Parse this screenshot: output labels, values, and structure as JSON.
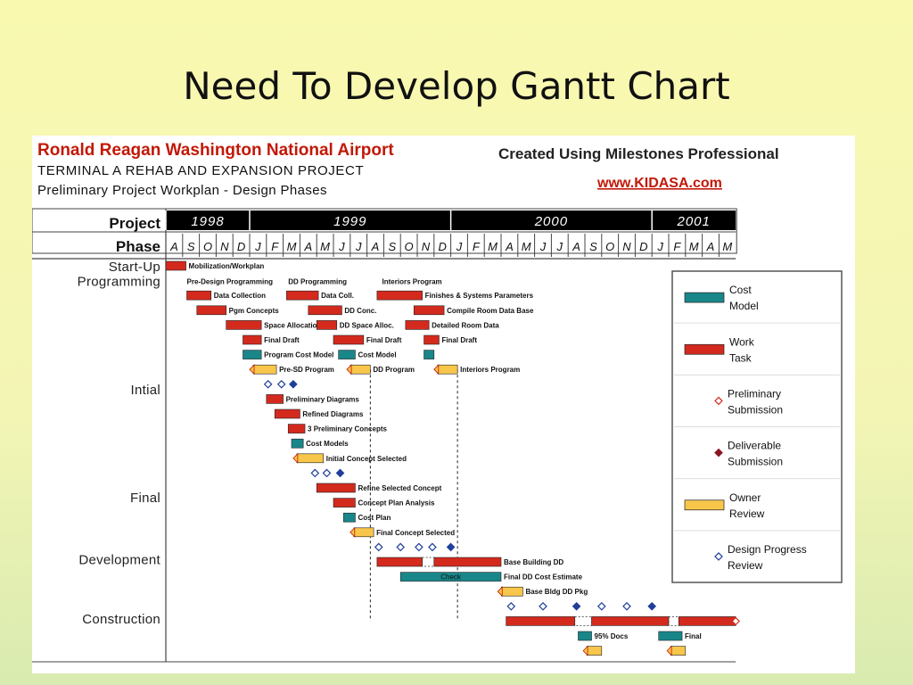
{
  "slide": {
    "title": "Need To Develop Gantt Chart"
  },
  "header": {
    "airport": "Ronald Reagan Washington National Airport",
    "project": "TERMINAL A REHAB AND EXPANSION PROJECT",
    "subtitle": "Preliminary Project Workplan - Design Phases",
    "created": "Created Using Milestones Professional",
    "url": "www.KIDASA.com"
  },
  "colors": {
    "work": "#d42a1e",
    "cost": "#19878a",
    "review": "#f7c64a",
    "prelim": "#d42a1e",
    "deliverable": "#8a1424",
    "progress": "#1f3f9a",
    "brand_red": "#c21807",
    "link_red": "#c21807"
  },
  "chart_data": {
    "type": "gantt",
    "axis_labels": {
      "project": "Project",
      "phase": "Phase"
    },
    "years": [
      {
        "label": "1998",
        "start": 0,
        "end": 5
      },
      {
        "label": "1999",
        "start": 5,
        "end": 17
      },
      {
        "label": "2000",
        "start": 17,
        "end": 29
      },
      {
        "label": "2001",
        "start": 29,
        "end": 34
      }
    ],
    "months": [
      "A",
      "S",
      "O",
      "N",
      "D",
      "J",
      "F",
      "M",
      "A",
      "M",
      "J",
      "J",
      "A",
      "S",
      "O",
      "N",
      "D",
      "J",
      "F",
      "M",
      "A",
      "M",
      "J",
      "J",
      "A",
      "S",
      "O",
      "N",
      "D",
      "J",
      "F",
      "M",
      "A",
      "M"
    ],
    "phases": [
      "Start-Up",
      "Programming",
      "Intial",
      "Final",
      "Development",
      "Construction"
    ],
    "tasks": [
      {
        "row": 0,
        "start": 0,
        "end": 1.2,
        "kind": "work",
        "label": "Mobilization/Workplan"
      },
      {
        "row": 1,
        "start": null,
        "end": null,
        "kind": "label",
        "label": "Pre-Design Programming",
        "at": 1.25
      },
      {
        "row": 1,
        "start": null,
        "end": null,
        "kind": "label",
        "label": "DD Programming",
        "at": 7.3
      },
      {
        "row": 1,
        "start": null,
        "end": null,
        "kind": "label",
        "label": "Interiors Program",
        "at": 12.9
      },
      {
        "row": 2,
        "start": 1.25,
        "end": 2.7,
        "kind": "work",
        "label": "Data Collection"
      },
      {
        "row": 2,
        "start": 7.2,
        "end": 9.1,
        "kind": "work",
        "label": "Data Coll."
      },
      {
        "row": 2,
        "start": 12.6,
        "end": 15.3,
        "kind": "work",
        "label": "Finishes & Systems Parameters"
      },
      {
        "row": 3,
        "start": 1.85,
        "end": 3.6,
        "kind": "work",
        "label": "Pgm Concepts"
      },
      {
        "row": 3,
        "start": 8.5,
        "end": 10.5,
        "kind": "work",
        "label": "DD Conc."
      },
      {
        "row": 3,
        "start": 14.8,
        "end": 16.6,
        "kind": "work",
        "label": "Compile Room Data Base"
      },
      {
        "row": 4,
        "start": 3.6,
        "end": 5.7,
        "kind": "work",
        "label": "Space Allocations"
      },
      {
        "row": 4,
        "start": 9.0,
        "end": 10.2,
        "kind": "work",
        "label": "DD Space Alloc."
      },
      {
        "row": 4,
        "start": 14.3,
        "end": 15.7,
        "kind": "work",
        "label": "Detailed Room Data"
      },
      {
        "row": 5,
        "start": 4.6,
        "end": 5.7,
        "kind": "work",
        "label": "Final Draft"
      },
      {
        "row": 5,
        "start": 10.0,
        "end": 11.8,
        "kind": "work",
        "label": "Final Draft"
      },
      {
        "row": 5,
        "start": 15.4,
        "end": 16.3,
        "kind": "work",
        "label": "Final Draft"
      },
      {
        "row": 6,
        "start": 4.6,
        "end": 5.7,
        "kind": "cost",
        "label": "Program Cost Model"
      },
      {
        "row": 6,
        "start": 10.3,
        "end": 11.3,
        "kind": "cost",
        "label": "Cost Model"
      },
      {
        "row": 6,
        "start": 15.4,
        "end": 16.0,
        "kind": "cost",
        "label": ""
      },
      {
        "row": 7,
        "start": 5.0,
        "end": 6.6,
        "kind": "review",
        "label": "Pre-SD Program"
      },
      {
        "row": 7,
        "start": 10.8,
        "end": 12.2,
        "kind": "review",
        "label": "DD Program"
      },
      {
        "row": 7,
        "start": 16.0,
        "end": 17.4,
        "kind": "review",
        "label": "Interiors Program"
      },
      {
        "row": 9,
        "start": 6.0,
        "end": 7.0,
        "kind": "work",
        "label": "Preliminary Diagrams"
      },
      {
        "row": 10,
        "start": 6.5,
        "end": 8.0,
        "kind": "work",
        "label": "Refined Diagrams"
      },
      {
        "row": 11,
        "start": 7.3,
        "end": 8.3,
        "kind": "work",
        "label": "3 Preliminary Concepts"
      },
      {
        "row": 12,
        "start": 7.5,
        "end": 8.2,
        "kind": "cost",
        "label": "Cost Models"
      },
      {
        "row": 13,
        "start": 7.6,
        "end": 9.4,
        "kind": "review",
        "label": "Initial Concept Selected"
      },
      {
        "row": 15,
        "start": 9.0,
        "end": 11.3,
        "kind": "work",
        "label": "Refine Selected Concept"
      },
      {
        "row": 16,
        "start": 10.0,
        "end": 11.3,
        "kind": "work",
        "label": "Concept Plan Analysis"
      },
      {
        "row": 17,
        "start": 10.6,
        "end": 11.3,
        "kind": "cost",
        "label": "Cost Plan"
      },
      {
        "row": 18,
        "start": 11.0,
        "end": 12.4,
        "kind": "review",
        "label": "Final Concept Selected"
      },
      {
        "row": 20,
        "start": 12.6,
        "end": 15.3,
        "kind": "work",
        "label": ""
      },
      {
        "row": 20,
        "start": 15.3,
        "end": 16.0,
        "kind": "gap",
        "label": ""
      },
      {
        "row": 20,
        "start": 16.0,
        "end": 20.0,
        "kind": "work",
        "label": "Base Building DD"
      },
      {
        "row": 21,
        "start": 14.0,
        "end": 20.0,
        "kind": "cost",
        "label": "Final DD Cost Estimate",
        "inner": "Check"
      },
      {
        "row": 22,
        "start": 19.8,
        "end": 21.3,
        "kind": "review",
        "label": "Base Bldg DD Pkg"
      },
      {
        "row": 24,
        "start": 20.3,
        "end": 24.4,
        "kind": "work",
        "label": ""
      },
      {
        "row": 24,
        "start": 24.4,
        "end": 25.4,
        "kind": "gap",
        "label": ""
      },
      {
        "row": 24,
        "start": 25.4,
        "end": 30.0,
        "kind": "work",
        "label": ""
      },
      {
        "row": 24,
        "start": 30.0,
        "end": 30.6,
        "kind": "gap",
        "label": ""
      },
      {
        "row": 24,
        "start": 30.6,
        "end": 34.0,
        "kind": "work",
        "label": ""
      },
      {
        "row": 25,
        "start": 24.6,
        "end": 25.4,
        "kind": "cost",
        "label": "95% Docs"
      },
      {
        "row": 25,
        "start": 29.4,
        "end": 30.8,
        "kind": "cost",
        "label": "Final"
      },
      {
        "row": 26,
        "start": 24.9,
        "end": 26.0,
        "kind": "review",
        "label": ""
      },
      {
        "row": 26,
        "start": 29.9,
        "end": 31.0,
        "kind": "review",
        "label": ""
      }
    ],
    "milestones": [
      {
        "row": 8,
        "at": 6.1,
        "kind": "progress"
      },
      {
        "row": 8,
        "at": 6.9,
        "kind": "progress"
      },
      {
        "row": 8,
        "at": 7.6,
        "kind": "deliverable"
      },
      {
        "row": 14,
        "at": 8.9,
        "kind": "progress"
      },
      {
        "row": 14,
        "at": 9.6,
        "kind": "progress"
      },
      {
        "row": 14,
        "at": 10.4,
        "kind": "deliverable"
      },
      {
        "row": 19,
        "at": 12.7,
        "kind": "progress"
      },
      {
        "row": 19,
        "at": 14.0,
        "kind": "progress"
      },
      {
        "row": 19,
        "at": 15.1,
        "kind": "progress"
      },
      {
        "row": 19,
        "at": 15.9,
        "kind": "progress"
      },
      {
        "row": 19,
        "at": 17.0,
        "kind": "deliverable"
      },
      {
        "row": 23,
        "at": 20.6,
        "kind": "progress"
      },
      {
        "row": 23,
        "at": 22.5,
        "kind": "progress"
      },
      {
        "row": 23,
        "at": 24.5,
        "kind": "deliverable"
      },
      {
        "row": 23,
        "at": 26.0,
        "kind": "progress"
      },
      {
        "row": 23,
        "at": 27.5,
        "kind": "progress"
      },
      {
        "row": 23,
        "at": 29.0,
        "kind": "deliverable"
      },
      {
        "row": 24,
        "at": 34.0,
        "kind": "prelim"
      }
    ],
    "legend": [
      {
        "kind": "cost",
        "label": "Cost\nModel"
      },
      {
        "kind": "work",
        "label": "Work\nTask"
      },
      {
        "kind": "prelim",
        "label": "Preliminary\nSubmission"
      },
      {
        "kind": "deliverable",
        "label": "Deliverable\nSubmission"
      },
      {
        "kind": "review",
        "label": "Owner\nReview"
      },
      {
        "kind": "progress",
        "label": "Design Progress\nReview"
      }
    ]
  }
}
